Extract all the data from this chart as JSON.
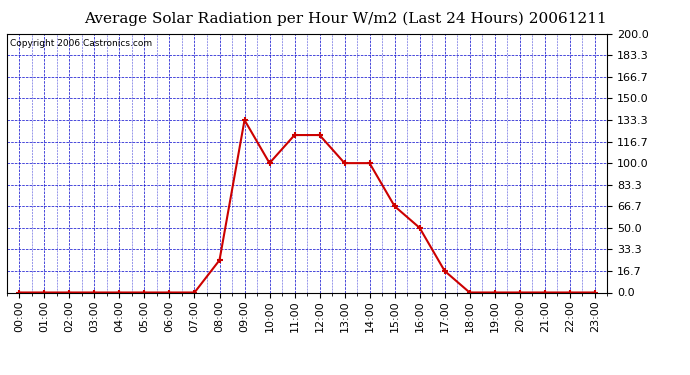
{
  "title": "Average Solar Radiation per Hour W/m2 (Last 24 Hours) 20061211",
  "copyright": "Copyright 2006 Castronics.com",
  "hours": [
    "00:00",
    "01:00",
    "02:00",
    "03:00",
    "04:00",
    "05:00",
    "06:00",
    "07:00",
    "08:00",
    "09:00",
    "10:00",
    "11:00",
    "12:00",
    "13:00",
    "14:00",
    "15:00",
    "16:00",
    "17:00",
    "18:00",
    "19:00",
    "20:00",
    "21:00",
    "22:00",
    "23:00"
  ],
  "values": [
    0.0,
    0.0,
    0.0,
    0.0,
    0.0,
    0.0,
    0.0,
    0.0,
    25.0,
    133.3,
    100.0,
    121.7,
    121.7,
    100.0,
    100.0,
    66.7,
    50.0,
    16.7,
    0.0,
    0.0,
    0.0,
    0.0,
    0.0,
    0.0
  ],
  "ylim": [
    0.0,
    200.0
  ],
  "yticks": [
    0.0,
    16.7,
    33.3,
    50.0,
    66.7,
    83.3,
    100.0,
    116.7,
    133.3,
    150.0,
    166.7,
    183.3,
    200.0
  ],
  "line_color": "#cc0000",
  "marker_color": "#cc0000",
  "bg_color": "#ffffff",
  "plot_bg_color": "#ffffff",
  "grid_color": "#0000cc",
  "title_color": "#000000",
  "axis_label_color": "#000000",
  "title_fontsize": 11,
  "tick_fontsize": 8,
  "copyright_fontsize": 6.5
}
